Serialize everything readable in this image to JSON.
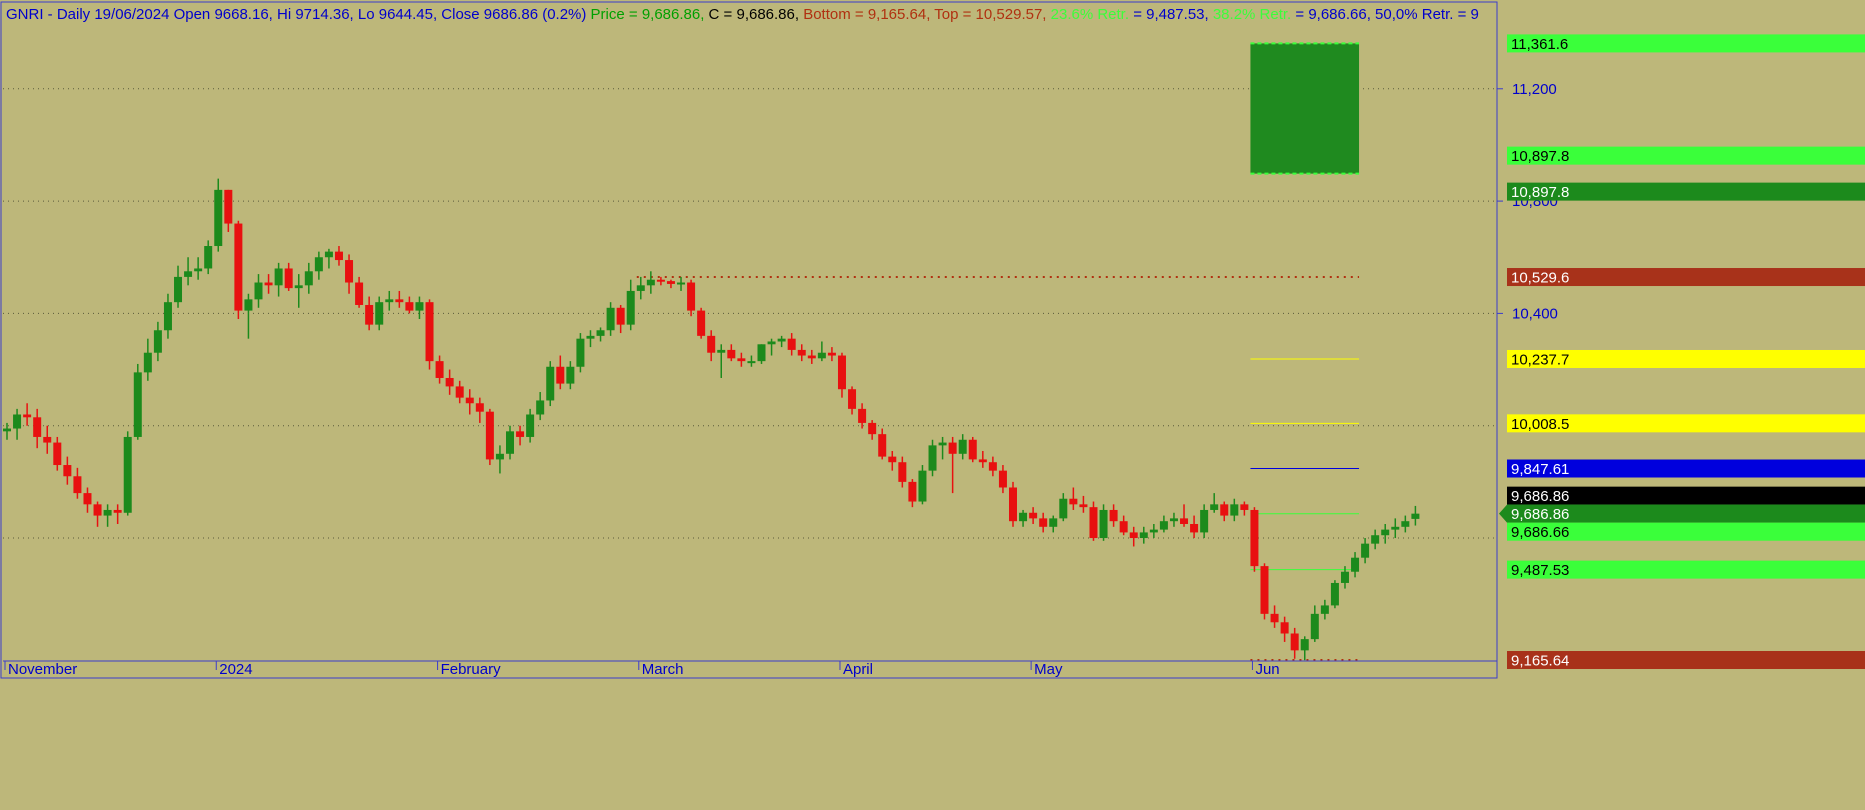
{
  "header": [
    {
      "text": "GNRI - Daily 19/06/2024 Open 9668.16, Hi 9714.36, Lo 9644.45, Close 9686.86 (0.2%) ",
      "color": "#0000cc"
    },
    {
      "text": "Price = 9,686.86, ",
      "color": "#00a000"
    },
    {
      "text": "C = 9,686.86, ",
      "color": "#000000"
    },
    {
      "text": "Bottom = 9,165.64, ",
      "color": "#b03010"
    },
    {
      "text": "Top = 10,529.57, ",
      "color": "#b03010"
    },
    {
      "text": "23.6% Retr. ",
      "color": "#3aff3a"
    },
    {
      "text": "= 9,487.53, ",
      "color": "#0000cc"
    },
    {
      "text": "38.2% Retr. ",
      "color": "#3aff3a"
    },
    {
      "text": "= 9,686.66, 50,0% Retr. = 9",
      "color": "#0000cc"
    }
  ],
  "colors": {
    "background": "#bdb77a",
    "up": "#1c8a1c",
    "down": "#e81010",
    "grid": "#5a5a3a",
    "axis_text": "#0000cc"
  },
  "chart_data": {
    "type": "candlestick",
    "ylim": [
      9165.64,
      11420
    ],
    "y_ticks": [
      {
        "value": 11200,
        "label": "11,200"
      },
      {
        "value": 10800,
        "label": "10,800"
      },
      {
        "value": 10400,
        "label": "10,400"
      }
    ],
    "x_labels": [
      {
        "index": 0,
        "label": "November"
      },
      {
        "index": 21,
        "label": "2024"
      },
      {
        "index": 43,
        "label": "February"
      },
      {
        "index": 63,
        "label": "March"
      },
      {
        "index": 83,
        "label": "April"
      },
      {
        "index": 102,
        "label": "May"
      },
      {
        "index": 124,
        "label": "Jun"
      }
    ],
    "candles": [
      [
        9980,
        10010,
        9950,
        9990
      ],
      [
        9990,
        10060,
        9950,
        10040
      ],
      [
        10040,
        10080,
        10000,
        10030
      ],
      [
        10030,
        10060,
        9920,
        9960
      ],
      [
        9960,
        10000,
        9900,
        9940
      ],
      [
        9940,
        9960,
        9840,
        9860
      ],
      [
        9860,
        9890,
        9790,
        9820
      ],
      [
        9820,
        9850,
        9740,
        9760
      ],
      [
        9760,
        9780,
        9690,
        9720
      ],
      [
        9720,
        9730,
        9640,
        9680
      ],
      [
        9680,
        9720,
        9640,
        9700
      ],
      [
        9700,
        9720,
        9650,
        9690
      ],
      [
        9690,
        9980,
        9680,
        9960
      ],
      [
        9960,
        10220,
        9950,
        10190
      ],
      [
        10190,
        10310,
        10160,
        10260
      ],
      [
        10260,
        10370,
        10230,
        10340
      ],
      [
        10340,
        10470,
        10310,
        10440
      ],
      [
        10440,
        10570,
        10420,
        10530
      ],
      [
        10530,
        10600,
        10500,
        10550
      ],
      [
        10550,
        10600,
        10520,
        10560
      ],
      [
        10560,
        10660,
        10540,
        10640
      ],
      [
        10640,
        10880,
        10620,
        10840
      ],
      [
        10840,
        10840,
        10690,
        10720
      ],
      [
        10720,
        10730,
        10380,
        10410
      ],
      [
        10410,
        10470,
        10310,
        10450
      ],
      [
        10450,
        10540,
        10420,
        10510
      ],
      [
        10510,
        10540,
        10470,
        10500
      ],
      [
        10500,
        10580,
        10460,
        10560
      ],
      [
        10560,
        10580,
        10480,
        10490
      ],
      [
        10490,
        10540,
        10420,
        10500
      ],
      [
        10500,
        10580,
        10470,
        10550
      ],
      [
        10550,
        10620,
        10520,
        10600
      ],
      [
        10600,
        10630,
        10560,
        10620
      ],
      [
        10620,
        10640,
        10570,
        10590
      ],
      [
        10590,
        10610,
        10470,
        10510
      ],
      [
        10510,
        10530,
        10420,
        10430
      ],
      [
        10430,
        10460,
        10340,
        10360
      ],
      [
        10360,
        10460,
        10340,
        10440
      ],
      [
        10440,
        10480,
        10410,
        10450
      ],
      [
        10450,
        10480,
        10420,
        10440
      ],
      [
        10440,
        10460,
        10400,
        10410
      ],
      [
        10410,
        10460,
        10380,
        10440
      ],
      [
        10440,
        10450,
        10200,
        10230
      ],
      [
        10230,
        10250,
        10150,
        10170
      ],
      [
        10170,
        10200,
        10110,
        10140
      ],
      [
        10140,
        10160,
        10080,
        10100
      ],
      [
        10100,
        10130,
        10040,
        10080
      ],
      [
        10080,
        10100,
        10010,
        10050
      ],
      [
        10050,
        10060,
        9860,
        9880
      ],
      [
        9880,
        9930,
        9830,
        9900
      ],
      [
        9900,
        10000,
        9880,
        9980
      ],
      [
        9980,
        10000,
        9930,
        9960
      ],
      [
        9960,
        10060,
        9940,
        10040
      ],
      [
        10040,
        10120,
        10020,
        10090
      ],
      [
        10090,
        10230,
        10070,
        10210
      ],
      [
        10210,
        10250,
        10130,
        10150
      ],
      [
        10150,
        10230,
        10130,
        10210
      ],
      [
        10210,
        10330,
        10190,
        10310
      ],
      [
        10310,
        10340,
        10280,
        10320
      ],
      [
        10320,
        10350,
        10300,
        10340
      ],
      [
        10340,
        10440,
        10320,
        10420
      ],
      [
        10420,
        10430,
        10330,
        10360
      ],
      [
        10360,
        10520,
        10340,
        10480
      ],
      [
        10480,
        10530,
        10450,
        10500
      ],
      [
        10500,
        10550,
        10470,
        10520
      ],
      [
        10520,
        10530,
        10500,
        10515
      ],
      [
        10515,
        10520,
        10490,
        10505
      ],
      [
        10505,
        10530,
        10480,
        10510
      ],
      [
        10510,
        10520,
        10390,
        10410
      ],
      [
        10410,
        10420,
        10310,
        10320
      ],
      [
        10320,
        10340,
        10230,
        10260
      ],
      [
        10260,
        10290,
        10170,
        10270
      ],
      [
        10270,
        10290,
        10230,
        10240
      ],
      [
        10240,
        10260,
        10210,
        10230
      ],
      [
        10230,
        10250,
        10210,
        10230
      ],
      [
        10230,
        10290,
        10220,
        10290
      ],
      [
        10290,
        10310,
        10250,
        10300
      ],
      [
        10300,
        10320,
        10280,
        10310
      ],
      [
        10310,
        10330,
        10250,
        10270
      ],
      [
        10270,
        10290,
        10230,
        10250
      ],
      [
        10250,
        10270,
        10220,
        10240
      ],
      [
        10240,
        10300,
        10230,
        10260
      ],
      [
        10260,
        10280,
        10230,
        10250
      ],
      [
        10250,
        10260,
        10100,
        10130
      ],
      [
        10130,
        10140,
        10040,
        10060
      ],
      [
        10060,
        10080,
        9990,
        10010
      ],
      [
        10010,
        10020,
        9950,
        9970
      ],
      [
        9970,
        9990,
        9880,
        9890
      ],
      [
        9890,
        9910,
        9840,
        9870
      ],
      [
        9870,
        9890,
        9780,
        9800
      ],
      [
        9800,
        9810,
        9710,
        9730
      ],
      [
        9730,
        9860,
        9720,
        9840
      ],
      [
        9840,
        9950,
        9820,
        9930
      ],
      [
        9930,
        9960,
        9880,
        9940
      ],
      [
        9940,
        9960,
        9760,
        9900
      ],
      [
        9900,
        9970,
        9880,
        9950
      ],
      [
        9950,
        9960,
        9870,
        9880
      ],
      [
        9880,
        9910,
        9850,
        9870
      ],
      [
        9870,
        9890,
        9820,
        9840
      ],
      [
        9840,
        9860,
        9760,
        9780
      ],
      [
        9780,
        9800,
        9640,
        9660
      ],
      [
        9660,
        9700,
        9640,
        9690
      ],
      [
        9690,
        9710,
        9650,
        9670
      ],
      [
        9670,
        9690,
        9620,
        9640
      ],
      [
        9640,
        9680,
        9620,
        9670
      ],
      [
        9670,
        9760,
        9660,
        9740
      ],
      [
        9740,
        9780,
        9700,
        9720
      ],
      [
        9720,
        9750,
        9690,
        9710
      ],
      [
        9710,
        9730,
        9590,
        9600
      ],
      [
        9600,
        9720,
        9590,
        9700
      ],
      [
        9700,
        9720,
        9640,
        9660
      ],
      [
        9660,
        9680,
        9610,
        9620
      ],
      [
        9620,
        9640,
        9570,
        9600
      ],
      [
        9600,
        9640,
        9580,
        9620
      ],
      [
        9620,
        9650,
        9600,
        9630
      ],
      [
        9630,
        9680,
        9620,
        9660
      ],
      [
        9660,
        9690,
        9640,
        9670
      ],
      [
        9670,
        9720,
        9640,
        9650
      ],
      [
        9650,
        9680,
        9600,
        9620
      ],
      [
        9620,
        9720,
        9600,
        9700
      ],
      [
        9700,
        9760,
        9690,
        9720
      ],
      [
        9720,
        9730,
        9660,
        9680
      ],
      [
        9680,
        9740,
        9660,
        9720
      ],
      [
        9720,
        9730,
        9680,
        9700
      ],
      [
        9700,
        9710,
        9480,
        9500
      ],
      [
        9500,
        9510,
        9310,
        9330
      ],
      [
        9330,
        9360,
        9280,
        9300
      ],
      [
        9300,
        9320,
        9230,
        9260
      ],
      [
        9260,
        9280,
        9170,
        9200
      ],
      [
        9200,
        9250,
        9165,
        9240
      ],
      [
        9240,
        9360,
        9230,
        9330
      ],
      [
        9330,
        9380,
        9310,
        9360
      ],
      [
        9360,
        9450,
        9350,
        9440
      ],
      [
        9440,
        9500,
        9420,
        9480
      ],
      [
        9480,
        9550,
        9460,
        9530
      ],
      [
        9530,
        9600,
        9510,
        9580
      ],
      [
        9580,
        9630,
        9560,
        9610
      ],
      [
        9610,
        9650,
        9580,
        9630
      ],
      [
        9630,
        9670,
        9600,
        9640
      ],
      [
        9640,
        9680,
        9620,
        9660
      ],
      [
        9668.16,
        9714.36,
        9644.45,
        9686.86
      ]
    ],
    "overlay_box": {
      "top": 11361.6,
      "bottom": 10897.8,
      "start_index": 124,
      "end_index": 134
    },
    "levels": [
      {
        "name": "top",
        "value": 10529.57,
        "label": "10,529.6",
        "color": "#b03010",
        "label_bg": "#a8321a",
        "label_fg": "#ffffff",
        "style": "dotted",
        "start_index": 63,
        "end_index": 134
      },
      {
        "name": "retr-a",
        "value": 10237.7,
        "label": "10,237.7",
        "color": "#ffff00",
        "label_bg": "#ffff00",
        "label_fg": "#000000",
        "style": "solid",
        "start_index": 124,
        "end_index": 134
      },
      {
        "name": "retr-b",
        "value": 10008.5,
        "label": "10,008.5",
        "color": "#ffff00",
        "label_bg": "#ffff00",
        "label_fg": "#000000",
        "style": "solid",
        "start_index": 124,
        "end_index": 134
      },
      {
        "name": "retr-c",
        "value": 9847.61,
        "label": "9,847.61",
        "color": "#0000dd",
        "label_bg": "#0000dd",
        "label_fg": "#ffffff",
        "style": "solid",
        "start_index": 124,
        "end_index": 134
      },
      {
        "name": "retr-382",
        "value": 9686.66,
        "label": "9,686.66",
        "color": "#3aff3a",
        "label_bg": "#3aff3a",
        "label_fg": "#000000",
        "style": "solid",
        "start_index": 124,
        "end_index": 134
      },
      {
        "name": "retr-236",
        "value": 9487.53,
        "label": "9,487.53",
        "color": "#3aff3a",
        "label_bg": "#3aff3a",
        "label_fg": "#000000",
        "style": "solid",
        "start_index": 124,
        "end_index": 134
      },
      {
        "name": "bottom",
        "value": 9165.64,
        "label": "9,165.64",
        "color": "#b03010",
        "label_bg": "#a8321a",
        "label_fg": "#ffffff",
        "style": "dotted",
        "start_index": 124,
        "end_index": 134
      }
    ],
    "right_labels": [
      {
        "value": 11361.6,
        "label": "11,361.6",
        "bg": "#3aff3a",
        "fg": "#000000"
      },
      {
        "value": 10897.8,
        "label": "10,897.8",
        "bg": "#3aff3a",
        "fg": "#000000",
        "offset": -1
      },
      {
        "value": 10897.8,
        "label": "10,897.8",
        "bg": "#1c8a1c",
        "fg": "#ffffff",
        "offset": 1
      },
      {
        "value": 9686.86,
        "label": "9,686.86",
        "bg": "#000000",
        "fg": "#ffffff",
        "offset": -1
      },
      {
        "value": 9686.86,
        "label": "9,686.86",
        "bg": "#1c8a1c",
        "fg": "#ffffff",
        "arrow": true,
        "offset": 0
      },
      {
        "value": 9686.66,
        "label": "9,686.66",
        "bg": "#3aff3a",
        "fg": "#000000",
        "offset": 1
      }
    ]
  }
}
